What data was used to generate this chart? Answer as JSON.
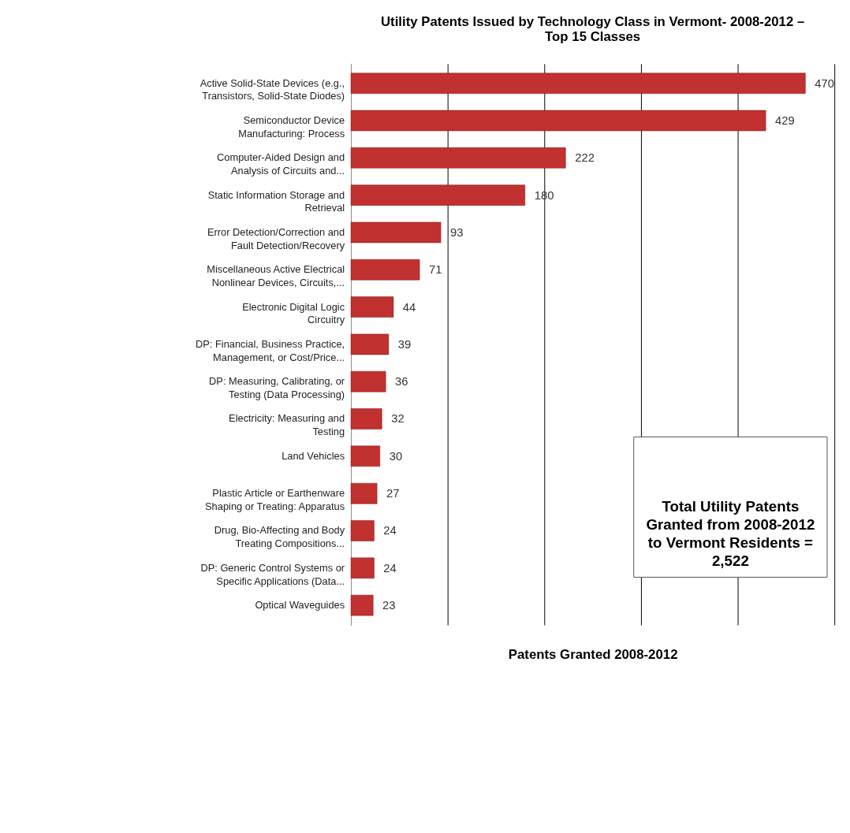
{
  "chart_data": {
    "type": "bar",
    "orientation": "horizontal",
    "title": "Utility Patents Issued by Technology Class in Vermont- 2008-2012 – Top 15 Classes",
    "xlabel": "Patents Granted 2008-2012",
    "categories": [
      "Active Solid-State Devices (e.g., Transistors, Solid-State Diodes)",
      "Semiconductor Device Manufacturing: Process",
      "Computer-Aided Design and Analysis of Circuits and...",
      "Static Information Storage and Retrieval",
      "Error Detection/Correction and Fault Detection/Recovery",
      "Miscellaneous Active Electrical Nonlinear Devices, Circuits,...",
      "Electronic Digital Logic Circuitry",
      "DP: Financial, Business Practice, Management, or Cost/Price...",
      "DP: Measuring, Calibrating, or Testing (Data Processing)",
      "Electricity: Measuring and Testing",
      "Land Vehicles",
      "Plastic Article or Earthenware Shaping or Treating: Apparatus",
      "Drug, Bio-Affecting and Body Treating Compositions...",
      "DP: Generic Control Systems or Specific Applications (Data...",
      "Optical Waveguides"
    ],
    "values": [
      470,
      429,
      222,
      180,
      93,
      71,
      44,
      39,
      36,
      32,
      30,
      27,
      24,
      24,
      23
    ],
    "color": "#c0312f",
    "data_labels": true,
    "xlim": [
      0,
      500
    ],
    "xticks": [
      {
        "value": 0,
        "label": null
      },
      {
        "value": 100,
        "label": null
      },
      {
        "value": 200,
        "label": null
      },
      {
        "value": 300,
        "label": null
      },
      {
        "value": 400,
        "label": null
      },
      {
        "value": 500,
        "label": null
      }
    ],
    "grid": "x",
    "tick_labels": "y",
    "annotations": [
      "Total Utility Patents Granted from 2008-2012 to Vermont Residents = 2,522"
    ]
  }
}
